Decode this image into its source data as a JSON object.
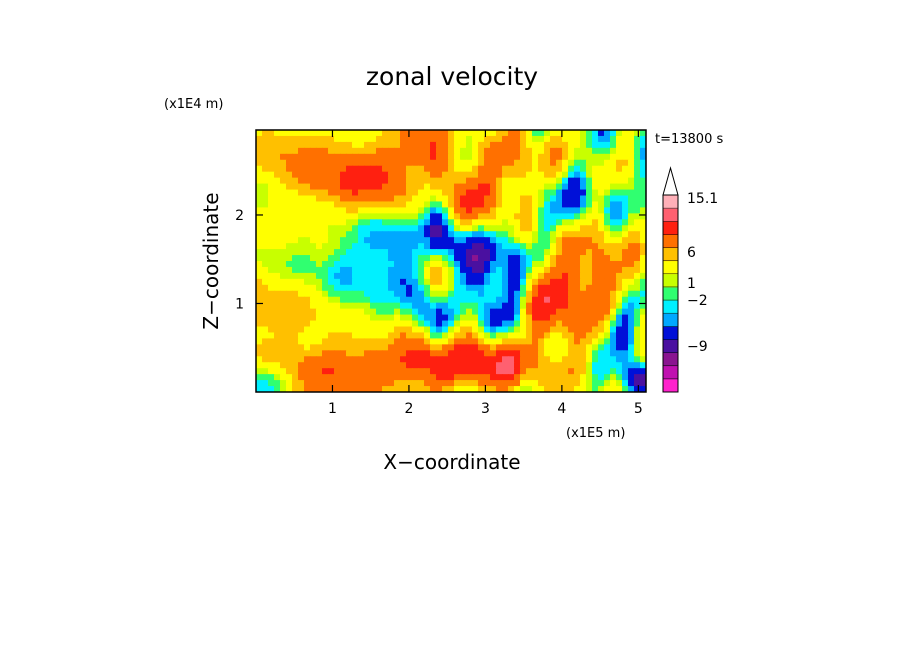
{
  "chart_data": {
    "type": "heatmap",
    "title": "zonal velocity",
    "xlabel": "X−coordinate",
    "ylabel": "Z−coordinate",
    "x_unit": "(x1E5 m)",
    "y_unit": "(x1E4 m)",
    "time_label": "t=13800 s",
    "x_ticks": [
      "1",
      "2",
      "3",
      "4",
      "5"
    ],
    "y_ticks": [
      "1",
      "2"
    ],
    "xlim": [
      0,
      5.1
    ],
    "ylim": [
      0,
      2.96
    ],
    "colorbar": {
      "tick_labels": [
        "15.1",
        "6",
        "1",
        "−2",
        "−9"
      ],
      "levels": [
        -16,
        -12,
        -9,
        -6,
        -4,
        -2,
        -1,
        0,
        1,
        2,
        4,
        6,
        9,
        12,
        15.1
      ],
      "colors": [
        "#ff22cc",
        "#c010b0",
        "#8a1490",
        "#4a10a0",
        "#0010d8",
        "#00a8ff",
        "#00f0ff",
        "#30ff70",
        "#c8ff00",
        "#ffff00",
        "#ffc000",
        "#ff7000",
        "#ff2010",
        "#ff6070",
        "#ffb0b8"
      ]
    }
  }
}
